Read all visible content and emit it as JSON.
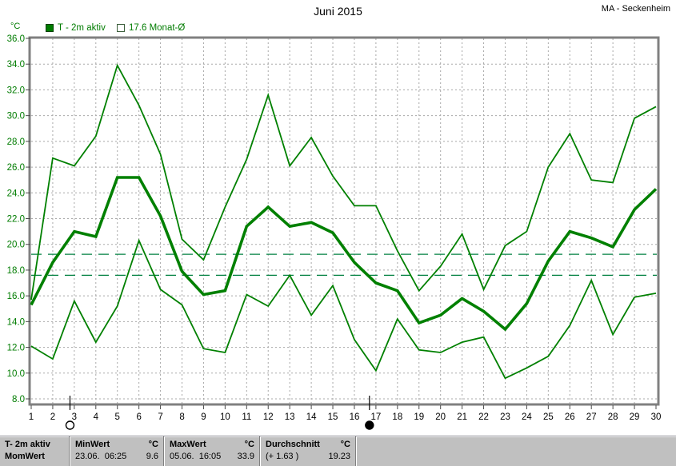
{
  "header": {
    "title": "Juni 2015",
    "station": "MA - Seckenheim"
  },
  "legend": {
    "unit": "°C",
    "series_label": "T - 2m aktiv",
    "monthly_avg_label": "17.6 Monat-Ø"
  },
  "status_bar": {
    "sensor": {
      "name": "T- 2m aktiv",
      "next_row_label": "MomWert"
    },
    "min": {
      "label": "MinWert",
      "unit": "°C",
      "datetime": "23.06.  06:25",
      "value": "9.6"
    },
    "max": {
      "label": "MaxWert",
      "unit": "°C",
      "datetime": "05.06.  16:05",
      "value": "33.9"
    },
    "avg": {
      "label": "Durchschnitt",
      "unit": "°C",
      "deviation": "(+ 1.63 )",
      "value": "19.23"
    }
  },
  "chart_data": {
    "type": "line",
    "title": "Juni 2015",
    "ylabel": "°C",
    "xlabel": "",
    "grid": true,
    "legend_position": "top-left",
    "ylim": [
      8,
      36
    ],
    "y_tick_step": 2,
    "y_ticks": [
      36,
      34,
      32,
      30,
      28,
      26,
      24,
      22,
      20,
      18,
      16,
      14,
      12,
      10,
      8
    ],
    "x": [
      1,
      2,
      3,
      4,
      5,
      6,
      7,
      8,
      9,
      10,
      11,
      12,
      13,
      14,
      15,
      16,
      17,
      18,
      19,
      20,
      21,
      22,
      23,
      24,
      25,
      26,
      27,
      28,
      29,
      30
    ],
    "series": [
      {
        "name": "daily-max",
        "color": "#008000",
        "width": 1.8,
        "values": [
          15.7,
          26.7,
          26.1,
          28.4,
          33.9,
          30.8,
          27.0,
          20.4,
          18.8,
          22.9,
          26.6,
          31.6,
          26.1,
          28.3,
          25.3,
          23.0,
          23.0,
          19.5,
          16.4,
          18.3,
          20.8,
          16.5,
          19.9,
          21.0,
          26.0,
          28.6,
          25.0,
          24.8,
          29.8,
          30.7
        ]
      },
      {
        "name": "daily-mean (T - 2m aktiv)",
        "color": "#008000",
        "width": 3.6,
        "values": [
          15.3,
          18.6,
          21.0,
          20.6,
          25.2,
          25.2,
          22.2,
          17.9,
          16.1,
          16.4,
          21.4,
          22.9,
          21.4,
          21.7,
          20.9,
          18.6,
          17.0,
          16.4,
          13.9,
          14.5,
          15.8,
          14.8,
          13.4,
          15.4,
          18.7,
          21.0,
          20.5,
          19.8,
          22.7,
          24.3
        ]
      },
      {
        "name": "daily-min",
        "color": "#008000",
        "width": 1.8,
        "values": [
          12.1,
          11.1,
          15.6,
          12.4,
          15.2,
          20.3,
          16.5,
          15.3,
          11.9,
          11.6,
          16.1,
          15.2,
          17.6,
          14.5,
          16.8,
          12.6,
          10.2,
          14.2,
          11.8,
          11.6,
          12.4,
          12.8,
          9.6,
          10.4,
          11.3,
          13.7,
          17.2,
          13.0,
          15.9,
          16.2
        ]
      }
    ],
    "reference_lines": [
      {
        "label": "Durchschnitt",
        "value": 19.23,
        "color": "#008040",
        "style": "dashed"
      },
      {
        "label": "Monat-Ø",
        "value": 17.6,
        "color": "#008040",
        "style": "dashed"
      }
    ],
    "moon_markers": [
      {
        "day": 2.8,
        "phase": "full"
      },
      {
        "day": 16.7,
        "phase": "new"
      }
    ]
  },
  "colors": {
    "series_green": "#008000",
    "axis_label_green": "#007c00",
    "grid_gray": "#a8a8a8",
    "frame_gray": "#808080",
    "statusbar_gray": "#c0c0c0"
  }
}
